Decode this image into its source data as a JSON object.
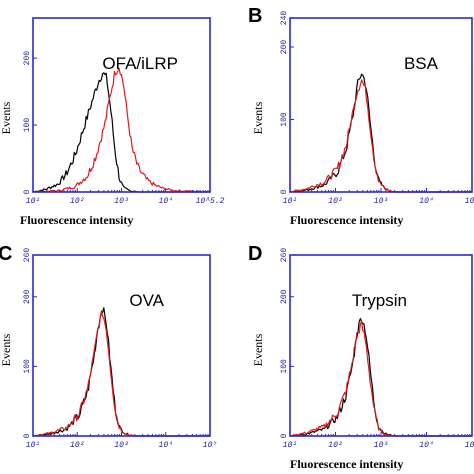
{
  "colors": {
    "axis": "#2a2ad0",
    "control": "#000000",
    "sample": "#e31a1c"
  },
  "chart_data": [
    {
      "type": "line",
      "panel": "",
      "label": "OFA/iLRP",
      "xlabel": "Fluorescence intensity",
      "ylabel": "Events",
      "xscale": "log",
      "xlim": [
        1,
        5.2
      ],
      "ylim": [
        0,
        260
      ],
      "ytick_labels": [
        "0",
        "100",
        "200"
      ],
      "xtick_labels": [
        "10¹",
        "10²",
        "10³",
        "10⁴",
        "10^5.2"
      ],
      "series": [
        {
          "color": "#000000",
          "x": [
            1.0,
            1.3,
            1.6,
            1.8,
            2.0,
            2.2,
            2.4,
            2.55,
            2.65,
            2.75,
            2.85,
            2.95,
            3.05,
            3.15,
            3.3,
            3.5,
            4.0,
            5.2
          ],
          "y": [
            0,
            4,
            12,
            28,
            55,
            95,
            135,
            165,
            178,
            170,
            120,
            60,
            20,
            6,
            2,
            0,
            0,
            0
          ]
        },
        {
          "color": "#e31a1c",
          "x": [
            1.0,
            1.6,
            2.0,
            2.3,
            2.5,
            2.7,
            2.85,
            2.95,
            3.05,
            3.15,
            3.25,
            3.35,
            3.5,
            3.7,
            3.9,
            4.1,
            4.4,
            5.2
          ],
          "y": [
            0,
            2,
            8,
            25,
            55,
            100,
            150,
            180,
            188,
            160,
            110,
            65,
            35,
            18,
            10,
            5,
            2,
            0
          ]
        }
      ]
    },
    {
      "type": "line",
      "panel": "B",
      "label": "BSA",
      "xlabel": "Fluorescence intensity",
      "ylabel": "Events",
      "xscale": "log",
      "xlim": [
        1,
        5.2
      ],
      "ylim": [
        0,
        240
      ],
      "ytick_labels": [
        "0",
        "100",
        "200",
        "240"
      ],
      "xtick_labels": [
        "10¹",
        "10²",
        "10³",
        "10⁴",
        "10⁵"
      ],
      "series": [
        {
          "color": "#000000",
          "x": [
            1.0,
            1.4,
            1.8,
            2.1,
            2.3,
            2.45,
            2.55,
            2.65,
            2.75,
            2.85,
            2.95,
            3.05,
            3.2,
            3.4,
            5.2
          ],
          "y": [
            0,
            3,
            10,
            28,
            60,
            105,
            145,
            165,
            150,
            95,
            45,
            15,
            4,
            0,
            0
          ]
        },
        {
          "color": "#e31a1c",
          "x": [
            1.0,
            1.4,
            1.8,
            2.1,
            2.3,
            2.45,
            2.55,
            2.65,
            2.75,
            2.85,
            2.95,
            3.05,
            3.2,
            3.4,
            5.2
          ],
          "y": [
            0,
            5,
            14,
            32,
            65,
            110,
            140,
            155,
            140,
            90,
            42,
            14,
            4,
            0,
            0
          ]
        }
      ]
    },
    {
      "type": "line",
      "panel": "C",
      "label": "OVA",
      "xlabel": "",
      "ylabel": "Events",
      "xscale": "log",
      "xlim": [
        1,
        5.2
      ],
      "ylim": [
        0,
        260
      ],
      "ytick_labels": [
        "0",
        "100",
        "200",
        "260"
      ],
      "xtick_labels": [
        "10¹",
        "10²",
        "10³",
        "10⁴",
        "10⁵"
      ],
      "series": [
        {
          "color": "#000000",
          "x": [
            1.0,
            1.4,
            1.8,
            2.1,
            2.3,
            2.45,
            2.55,
            2.65,
            2.75,
            2.85,
            2.95,
            3.05,
            3.2,
            3.4,
            5.2
          ],
          "y": [
            0,
            3,
            10,
            30,
            65,
            115,
            160,
            185,
            160,
            95,
            40,
            12,
            3,
            0,
            0
          ]
        },
        {
          "color": "#e31a1c",
          "x": [
            1.0,
            1.4,
            1.8,
            2.1,
            2.3,
            2.45,
            2.55,
            2.65,
            2.75,
            2.85,
            2.95,
            3.05,
            3.2,
            3.4,
            5.2
          ],
          "y": [
            0,
            4,
            12,
            32,
            68,
            118,
            158,
            178,
            150,
            90,
            38,
            12,
            3,
            0,
            0
          ]
        }
      ]
    },
    {
      "type": "line",
      "panel": "D",
      "label": "Trypsin",
      "xlabel": "Fluorescence intensity",
      "ylabel": "Events",
      "xscale": "log",
      "xlim": [
        1,
        5.2
      ],
      "ylim": [
        0,
        260
      ],
      "ytick_labels": [
        "0",
        "100",
        "200",
        "260"
      ],
      "xtick_labels": [
        "10¹",
        "10²",
        "10³",
        "10⁴",
        "10⁵"
      ],
      "series": [
        {
          "color": "#000000",
          "x": [
            1.0,
            1.4,
            1.8,
            2.1,
            2.3,
            2.45,
            2.55,
            2.65,
            2.75,
            2.85,
            2.95,
            3.05,
            3.2,
            3.4,
            5.2
          ],
          "y": [
            0,
            3,
            10,
            28,
            60,
            105,
            150,
            172,
            150,
            95,
            42,
            12,
            3,
            0,
            0
          ]
        },
        {
          "color": "#e31a1c",
          "x": [
            1.0,
            1.4,
            1.8,
            2.1,
            2.3,
            2.45,
            2.55,
            2.65,
            2.75,
            2.85,
            2.95,
            3.05,
            3.2,
            3.4,
            5.2
          ],
          "y": [
            0,
            5,
            14,
            34,
            66,
            110,
            148,
            160,
            135,
            80,
            35,
            10,
            2,
            0,
            0
          ]
        }
      ]
    }
  ]
}
